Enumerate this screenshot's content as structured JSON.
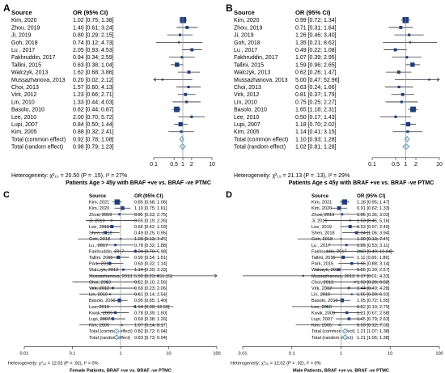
{
  "colors": {
    "square": "#1f3f7a",
    "diamond_fill": "#d6e6ee",
    "diamond_stroke": "#5b8fb0",
    "line": "#333333",
    "ref_line": "#888888"
  },
  "chart_data": [
    {
      "type": "forest",
      "letter": "A",
      "header_source": "Source",
      "header_or": "OR (95% CI)",
      "rows": [
        {
          "source": "Kim, 2020",
          "or": 1.02,
          "lo": 0.75,
          "hi": 1.38,
          "text": "1.02 [0.75; 1.38]",
          "w": 8
        },
        {
          "source": "Zhou, 2019",
          "or": 1.4,
          "lo": 0.61,
          "hi": 3.24,
          "text": "1.40 [0.61; 3.24]",
          "w": 3
        },
        {
          "source": "Ji, 2019",
          "or": 0.8,
          "lo": 0.29,
          "hi": 2.15,
          "text": "0.80 [0.29; 2.15]",
          "w": 2
        },
        {
          "source": "Goh, 2018",
          "or": 0.74,
          "lo": 0.12,
          "hi": 4.73,
          "text": "0.74 [0.12; 4.73]",
          "w": 1
        },
        {
          "source": "Lu , 2017",
          "or": 2.05,
          "lo": 0.93,
          "hi": 4.53,
          "text": "2.05 [0.93; 4.53]",
          "w": 3
        },
        {
          "source": "Fakhruddin, 2017",
          "or": 0.94,
          "lo": 0.34,
          "hi": 2.59,
          "text": "0.94 [0.34; 2.59]",
          "w": 2
        },
        {
          "source": "Tallini, 2015",
          "or": 0.63,
          "lo": 0.38,
          "hi": 1.04,
          "text": "0.63 [0.38; 1.04]",
          "w": 5
        },
        {
          "source": "Walczyk, 2013",
          "or": 1.62,
          "lo": 0.68,
          "hi": 3.86,
          "text": "1.62 [0.68; 3.86]",
          "w": 3
        },
        {
          "source": "Mussazhanova, 2013",
          "or": 0.2,
          "lo": 0.02,
          "hi": 2.12,
          "text": "0.20 [0.02; 2.12]",
          "w": 1
        },
        {
          "source": "Choi, 2013",
          "or": 1.57,
          "lo": 0.6,
          "hi": 4.13,
          "text": "1.57 [0.60; 4.13]",
          "w": 2
        },
        {
          "source": "Virk, 2012",
          "or": 1.23,
          "lo": 0.66,
          "hi": 2.71,
          "text": "1.23 [0.66; 2.71]",
          "w": 3
        },
        {
          "source": "Lin, 2010",
          "or": 1.33,
          "lo": 0.44,
          "hi": 4.03,
          "text": "1.33 [0.44; 4.03]",
          "w": 2
        },
        {
          "source": "Basolo, 2010",
          "or": 0.62,
          "lo": 0.44,
          "hi": 0.87,
          "text": "0.62 [0.44; 0.87]",
          "w": 7
        },
        {
          "source": "Lee, 2010",
          "or": 2.0,
          "lo": 0.7,
          "hi": 5.72,
          "text": "2.00 [0.70; 5.72]",
          "w": 2
        },
        {
          "source": "Lupi, 2007",
          "or": 0.84,
          "lo": 0.5,
          "hi": 1.44,
          "text": "0.84 [0.50; 1.44]",
          "w": 5
        },
        {
          "source": "Kim, 2005",
          "or": 0.88,
          "lo": 0.32,
          "hi": 2.41,
          "text": "0.88 [0.32; 2.41]",
          "w": 2
        }
      ],
      "summary": [
        {
          "source": "Total (common effect)",
          "or": 0.92,
          "lo": 0.78,
          "hi": 1.08,
          "text": "0.92 [0.78; 1.08]"
        },
        {
          "source": "Total (random effect)",
          "or": 0.98,
          "lo": 0.79,
          "hi": 1.23,
          "text": "0.98 [0.79; 1.23]"
        }
      ],
      "xticks": [
        0.1,
        0.5,
        1,
        2,
        10
      ],
      "xtick_labels": [
        "0.1",
        "0.5",
        "1",
        "2",
        "10"
      ],
      "xlim": [
        0.1,
        10
      ],
      "heterogeneity": "Heterogeneity: χ²₁₅ = 20.50 (P = .15), I² = 27%",
      "xlabel": "Patients Age > 45y with BRAF +ve vs. BRAF -ve PTMC"
    },
    {
      "type": "forest",
      "letter": "B",
      "header_source": "Source",
      "header_or": "OR (95% CI)",
      "rows": [
        {
          "source": "Kim, 2020",
          "or": 0.99,
          "lo": 0.72,
          "hi": 1.34,
          "text": "0.99 [0.72; 1.34]",
          "w": 8
        },
        {
          "source": "Zhou, 2019",
          "or": 0.71,
          "lo": 0.31,
          "hi": 1.64,
          "text": "0.71 [0.31; 1.64]",
          "w": 3
        },
        {
          "source": "Ji, 2019",
          "or": 1.26,
          "lo": 0.46,
          "hi": 3.4,
          "text": "1.26 [0.46; 3.40]",
          "w": 2
        },
        {
          "source": "Goh, 2018",
          "or": 1.35,
          "lo": 0.21,
          "hi": 8.62,
          "text": "1.35 [0.21; 8.62]",
          "w": 1
        },
        {
          "source": "Lu , 2017",
          "or": 0.49,
          "lo": 0.22,
          "hi": 1.08,
          "text": "0.49 [0.22; 1.08]",
          "w": 3
        },
        {
          "source": "Fakhruddin, 2017",
          "or": 1.07,
          "lo": 0.39,
          "hi": 2.95,
          "text": "1.07 [0.39; 2.95]",
          "w": 2
        },
        {
          "source": "Tallini, 2015",
          "or": 1.59,
          "lo": 0.96,
          "hi": 2.65,
          "text": "1.59 [0.96; 2.65]",
          "w": 5
        },
        {
          "source": "Walczyk, 2013",
          "or": 0.62,
          "lo": 0.26,
          "hi": 1.47,
          "text": "0.62 [0.26; 1.47]",
          "w": 3
        },
        {
          "source": "Mussazhanova, 2013",
          "or": 5.0,
          "lo": 0.47,
          "hi": 52.96,
          "text": "5.00 [0.47; 52.96]",
          "w": 1
        },
        {
          "source": "Choi, 2013",
          "or": 0.63,
          "lo": 0.24,
          "hi": 1.66,
          "text": "0.63 [0.24; 1.66]",
          "w": 2
        },
        {
          "source": "Virk, 2012",
          "or": 0.81,
          "lo": 0.37,
          "hi": 1.79,
          "text": "0.81 [0.37; 1.79]",
          "w": 3
        },
        {
          "source": "Lin, 2010",
          "or": 0.75,
          "lo": 0.25,
          "hi": 2.27,
          "text": "0.75 [0.25; 2.27]",
          "w": 2
        },
        {
          "source": "Basolo, 2010",
          "or": 1.65,
          "lo": 1.18,
          "hi": 2.31,
          "text": "1.65 [1.18; 2.31]",
          "w": 7
        },
        {
          "source": "Lee, 2010",
          "or": 0.5,
          "lo": 0.17,
          "hi": 1.43,
          "text": "0.50 [0.17; 1.43]",
          "w": 2
        },
        {
          "source": "Lupi, 2007",
          "or": 1.18,
          "lo": 0.7,
          "hi": 2.02,
          "text": "1.18 [0.70; 2.02]",
          "w": 5
        },
        {
          "source": "Kim, 2005",
          "or": 1.14,
          "lo": 0.41,
          "hi": 3.15,
          "text": "1.14 [0.41; 3.15]",
          "w": 2
        }
      ],
      "summary": [
        {
          "source": "Total (common effect)",
          "or": 1.1,
          "lo": 0.93,
          "hi": 1.28,
          "text": "1.10 [0.93; 1.28]"
        },
        {
          "source": "Total (random effect)",
          "or": 1.02,
          "lo": 0.81,
          "hi": 1.28,
          "text": "1.02 [0.81; 1.28]"
        }
      ],
      "xticks": [
        0.1,
        0.5,
        1,
        2,
        10
      ],
      "xtick_labels": [
        "0.1",
        "0.5",
        "1",
        "2",
        "10"
      ],
      "xlim": [
        0.1,
        10
      ],
      "heterogeneity": "Heterogeneity: χ²₁₅ = 21.13 (P = .13), I² = 29%",
      "xlabel": "Patients Age ≤ 45y with BRAF +ve vs. BRAF -ve PTMC"
    },
    {
      "type": "forest",
      "letter": "C",
      "header_source": "Source",
      "header_or": "OR (95% CI)",
      "rows": [
        {
          "source": "Kim, 2021",
          "or": 0.85,
          "lo": 0.68,
          "hi": 1.06,
          "text": "0.85 [0.68; 1.06]",
          "w": 8
        },
        {
          "source": "Kim, 2020",
          "or": 1.1,
          "lo": 0.75,
          "hi": 1.61,
          "text": "1.10 [0.75; 1.61]",
          "w": 5
        },
        {
          "source": "Zhou, 2019",
          "or": 0.95,
          "lo": 0.33,
          "hi": 2.75,
          "text": "0.95 [0.33; 2.75]",
          "w": 2
        },
        {
          "source": "Ji, 2019",
          "or": 0.65,
          "lo": 0.19,
          "hi": 2.26,
          "text": "0.65 [0.19; 2.26]",
          "w": 1
        },
        {
          "source": "Lee, 2019",
          "or": 0.66,
          "lo": 0.42,
          "hi": 1.03,
          "text": "0.66 [0.42; 1.03]",
          "w": 4
        },
        {
          "source": "Shen, 2018",
          "or": 0.49,
          "lo": 0.25,
          "hi": 0.95,
          "text": "0.49 [0.25; 0.95]",
          "w": 3
        },
        {
          "source": "Goh, 2018",
          "or": 1.0,
          "lo": 0.13,
          "hi": 7.45,
          "text": "1.00 [0.13; 7.45]",
          "w": 1
        },
        {
          "source": "Lu , 2017",
          "or": 0.78,
          "lo": 0.32,
          "hi": 1.88,
          "text": "0.78 [0.32; 1.88]",
          "w": 2
        },
        {
          "source": "Fakhruddin, 2017",
          "or": 2.04,
          "lo": 0.7,
          "hi": 5.98,
          "text": "2.04 [0.70; 5.98]",
          "w": 2
        },
        {
          "source": "Tallini, 2015",
          "or": 0.9,
          "lo": 0.54,
          "hi": 1.51,
          "text": "0.90 [0.54; 1.51]",
          "w": 4
        },
        {
          "source": "Park, 2015",
          "or": 0.6,
          "lo": 0.32,
          "hi": 1.14,
          "text": "0.60 [0.32; 1.14]",
          "w": 3
        },
        {
          "source": "Walczyk, 2013",
          "or": 1.14,
          "lo": 0.39,
          "hi": 3.33,
          "text": "1.14 [0.39; 3.33]",
          "w": 2
        },
        {
          "source": "Mussazhanova, 2013",
          "or": 5.92,
          "lo": 0.23,
          "hi": 151.15,
          "text": "5.92 [0.23; 151.15]",
          "w": 1
        },
        {
          "source": "Choi, 2013",
          "or": 0.52,
          "lo": 0.1,
          "hi": 2.56,
          "text": "0.52 [0.10; 2.56]",
          "w": 1
        },
        {
          "source": "Virk, 2012",
          "or": 0.69,
          "lo": 0.23,
          "hi": 2.06,
          "text": "0.69 [0.23; 2.06]",
          "w": 2
        },
        {
          "source": "Lin, 2010",
          "or": 0.61,
          "lo": 0.14,
          "hi": 2.54,
          "text": "0.61 [0.14; 2.54]",
          "w": 1
        },
        {
          "source": "Basolo, 2010",
          "or": 0.95,
          "lo": 0.65,
          "hi": 1.4,
          "text": "0.95 [0.65; 1.40]",
          "w": 5
        },
        {
          "source": "Lee, 2010",
          "or": 1.94,
          "lo": 0.3,
          "hi": 12.5,
          "text": "1.94 [0.30; 12.50]",
          "w": 1
        },
        {
          "source": "Kwak, 2009",
          "or": 0.78,
          "lo": 0.39,
          "hi": 1.5,
          "text": "0.78 [0.39; 1.50]",
          "w": 3
        },
        {
          "source": "Lupi, 2007",
          "or": 0.69,
          "lo": 0.38,
          "hi": 1.26,
          "text": "0.69 [0.38; 1.26]",
          "w": 3
        },
        {
          "source": "Kim, 2005",
          "or": 1.07,
          "lo": 0.14,
          "hi": 8.17,
          "text": "1.07 [0.14; 8.17]",
          "w": 1
        }
      ],
      "summary": [
        {
          "source": "Total (common effect)",
          "or": 0.82,
          "lo": 0.72,
          "hi": 0.94,
          "text": "0.82 [0.72; 0.94]"
        },
        {
          "source": "Total (random effect)",
          "or": 0.83,
          "lo": 0.73,
          "hi": 0.94,
          "text": "0.83 [0.73; 0.94]"
        }
      ],
      "xticks": [
        0.01,
        0.1,
        1,
        10,
        100
      ],
      "xtick_labels": [
        "0.01",
        "0.1",
        "1",
        "10",
        "100"
      ],
      "xlim": [
        0.01,
        100
      ],
      "heterogeneity": "Heterogeneity: χ²₂₀ = 12.02 (P = .92), I² = 0%",
      "xlabel": "Female Patients, BRAF +ve vs. BRAF -ve PTMC"
    },
    {
      "type": "forest",
      "letter": "D",
      "header_source": "Source",
      "header_or": "OR (95% CI)",
      "rows": [
        {
          "source": "Kim, 2021",
          "or": 1.18,
          "lo": 0.95,
          "hi": 1.47,
          "text": "1.18 [0.95; 1.47]",
          "w": 8
        },
        {
          "source": "Kim, 2020",
          "or": 0.91,
          "lo": 0.62,
          "hi": 1.33,
          "text": "0.91 [0.62; 1.33]",
          "w": 5
        },
        {
          "source": "Zhou, 2019",
          "or": 1.05,
          "lo": 0.36,
          "hi": 3.03,
          "text": "1.05 [0.36; 3.03]",
          "w": 2
        },
        {
          "source": "Ji, 2019",
          "or": 1.53,
          "lo": 0.45,
          "hi": 5.16,
          "text": "1.53 [0.45; 5.16]",
          "w": 1
        },
        {
          "source": "Lee, 2019",
          "or": 1.53,
          "lo": 0.97,
          "hi": 2.4,
          "text": "1.53 [0.97; 2.40]",
          "w": 4
        },
        {
          "source": "Shen, 2018",
          "or": 2.04,
          "lo": 1.06,
          "hi": 3.94,
          "text": "2.04 [1.06; 3.94]",
          "w": 3
        },
        {
          "source": "Goh, 2018",
          "or": 1.0,
          "lo": 0.13,
          "hi": 7.45,
          "text": "1.00 [0.13; 7.45]",
          "w": 1
        },
        {
          "source": "Lu , 2017",
          "or": 1.29,
          "lo": 0.53,
          "hi": 3.11,
          "text": "1.29 [0.53; 3.11]",
          "w": 2
        },
        {
          "source": "Fakhruddin, 2017",
          "or": 2.43,
          "lo": 0.49,
          "hi": 12.04,
          "text": "2.43 [0.49; 12.04]",
          "w": 1
        },
        {
          "source": "Tallini, 2015",
          "or": 1.11,
          "lo": 0.66,
          "hi": 1.86,
          "text": "1.11 [0.66; 1.86]",
          "w": 4
        },
        {
          "source": "Park, 2015",
          "or": 1.66,
          "lo": 0.88,
          "hi": 3.14,
          "text": "1.66 [0.88; 3.14]",
          "w": 3
        },
        {
          "source": "Walczyk, 2013",
          "or": 0.88,
          "lo": 0.3,
          "hi": 2.57,
          "text": "0.88 [0.30; 2.57]",
          "w": 2
        },
        {
          "source": "Mussazhanova, 2013",
          "or": 0.17,
          "lo": 0.01,
          "hi": 4.33,
          "text": "0.17 [0.01; 4.33]",
          "w": 1
        },
        {
          "source": "Choi, 2013",
          "or": 1.93,
          "lo": 0.39,
          "hi": 9.52,
          "text": "1.93 [0.39; 9.52]",
          "w": 1
        },
        {
          "source": "Virk, 2012",
          "or": 1.44,
          "lo": 0.49,
          "hi": 4.28,
          "text": "1.44 [0.49; 4.28]",
          "w": 2
        },
        {
          "source": "Lin, 2010",
          "or": 1.65,
          "lo": 0.39,
          "hi": 6.93,
          "text": "1.65 [0.39; 6.93]",
          "w": 1
        },
        {
          "source": "Basolo, 2010",
          "or": 1.05,
          "lo": 0.72,
          "hi": 1.55,
          "text": "1.05 [0.72; 1.55]",
          "w": 5
        },
        {
          "source": "Lee, 2010",
          "or": 0.52,
          "lo": 0.1,
          "hi": 2.79,
          "text": "0.52 [0.10; 2.79]",
          "w": 1
        },
        {
          "source": "Kwak, 2009",
          "or": 1.31,
          "lo": 0.67,
          "hi": 2.58,
          "text": "1.31 [0.67; 2.58]",
          "w": 3
        },
        {
          "source": "Lupi, 2007",
          "or": 1.45,
          "lo": 0.79,
          "hi": 2.63,
          "text": "1.45 [0.79; 2.63]",
          "w": 3
        },
        {
          "source": "Kim, 2005",
          "or": 0.93,
          "lo": 0.12,
          "hi": 7.08,
          "text": "0.93 [0.12; 7.08]",
          "w": 1
        }
      ],
      "summary": [
        {
          "source": "Total (common effect)",
          "or": 1.21,
          "lo": 1.07,
          "hi": 1.38,
          "text": "1.21 [1.07; 1.38]"
        },
        {
          "source": "Total (random effect)",
          "or": 1.21,
          "lo": 1.06,
          "hi": 1.38,
          "text": "1.21 [1.06; 1.38]"
        }
      ],
      "xticks": [
        0.01,
        0.1,
        1,
        10,
        100
      ],
      "xtick_labels": [
        "0.01",
        "0.1",
        "1",
        "10",
        "100"
      ],
      "xlim": [
        0.01,
        100
      ],
      "heterogeneity": "Heterogeneity: χ²₂₀ = 12.02 (P = .92), I² = 0%",
      "xlabel": "Male Patients, BRAF +ve vs. BRAF -ve PTMC"
    }
  ]
}
